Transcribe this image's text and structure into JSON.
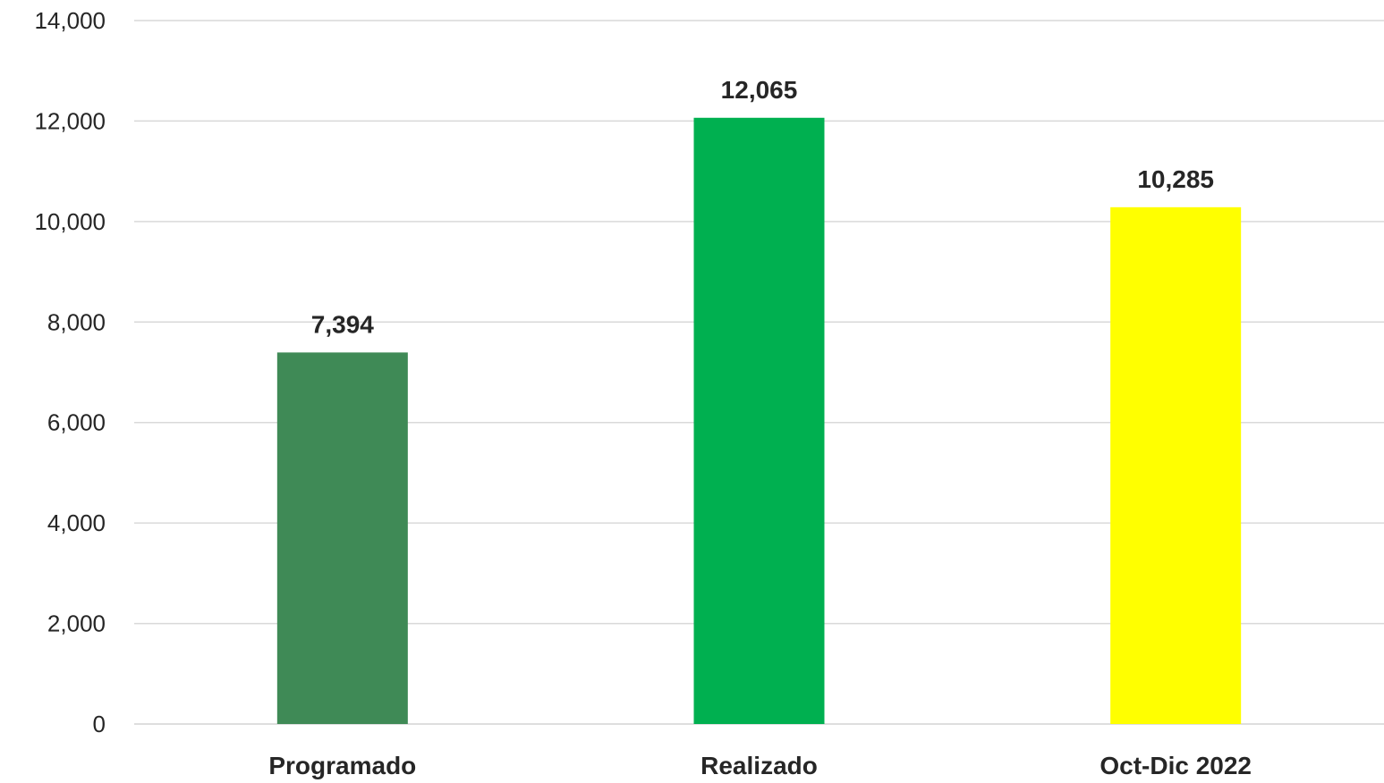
{
  "chart_data": {
    "type": "bar",
    "categories": [
      "Programado",
      "Realizado",
      "Oct-Dic 2022"
    ],
    "values": [
      7394,
      12065,
      10285
    ],
    "value_labels": [
      "7,394",
      "12,065",
      "10,285"
    ],
    "colors": [
      "#3f8a56",
      "#00b050",
      "#ffff00"
    ],
    "title": "",
    "xlabel": "",
    "ylabel": "",
    "ylim": [
      0,
      14000
    ],
    "yticks": [
      0,
      2000,
      4000,
      6000,
      8000,
      10000,
      12000,
      14000
    ],
    "ytick_labels": [
      "0",
      "2,000",
      "4,000",
      "6,000",
      "8,000",
      "10,000",
      "12,000",
      "14,000"
    ],
    "grid": true,
    "legend": "none"
  }
}
